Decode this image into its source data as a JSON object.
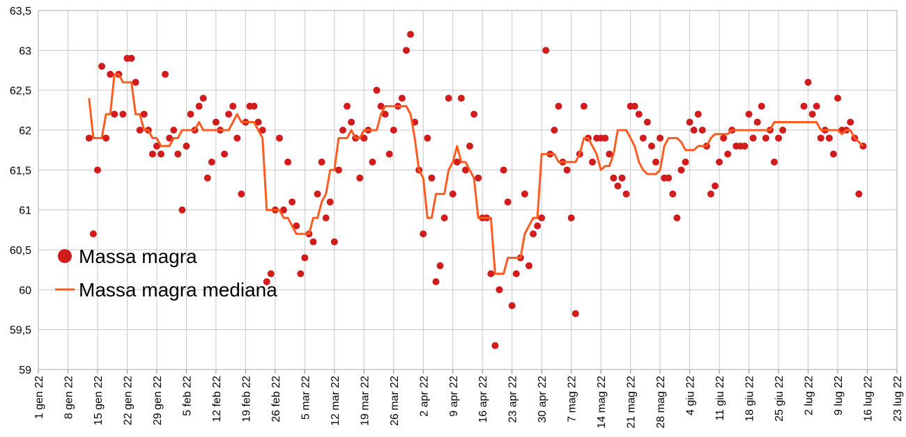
{
  "chart_data": {
    "type": "scatter",
    "x": [
      12,
      13,
      14,
      15,
      16,
      17,
      18,
      19,
      20,
      21,
      22,
      23,
      24,
      25,
      26,
      27,
      28,
      29,
      30,
      31,
      32,
      33,
      34,
      35,
      36,
      37,
      38,
      39,
      40,
      41,
      42,
      43,
      44,
      45,
      46,
      47,
      48,
      49,
      50,
      51,
      52,
      53,
      54,
      55,
      56,
      57,
      58,
      59,
      60,
      61,
      62,
      63,
      64,
      65,
      66,
      67,
      68,
      69,
      70,
      71,
      72,
      73,
      74,
      75,
      76,
      77,
      78,
      79,
      80,
      81,
      82,
      83,
      84,
      85,
      86,
      87,
      88,
      89,
      90,
      91,
      92,
      93,
      94,
      95,
      96,
      97,
      98,
      99,
      100,
      101,
      102,
      103,
      104,
      105,
      106,
      107,
      108,
      109,
      110,
      111,
      112,
      113,
      114,
      115,
      116,
      117,
      118,
      119,
      120,
      121,
      122,
      123,
      124,
      125,
      126,
      127,
      128,
      129,
      130,
      131,
      132,
      133,
      134,
      135,
      136,
      137,
      138,
      139,
      140,
      141,
      142,
      143,
      144,
      145,
      146,
      147,
      148,
      149,
      150,
      151,
      152,
      153,
      154,
      155,
      156,
      157,
      158,
      159,
      160,
      161,
      162,
      163,
      164,
      165,
      166,
      167,
      168,
      169,
      170,
      171,
      172,
      173,
      174,
      175,
      176,
      177,
      178,
      179,
      180,
      181,
      182,
      183,
      184,
      185,
      186,
      187,
      188,
      189,
      190,
      191,
      192,
      193,
      194,
      195
    ],
    "series": [
      {
        "name": "Massa magra",
        "type": "scatter",
        "color": "#d01c1c",
        "values": [
          61.9,
          60.7,
          61.5,
          62.8,
          61.9,
          62.7,
          62.2,
          62.7,
          62.2,
          62.9,
          62.9,
          62.6,
          62.0,
          62.2,
          62.0,
          61.7,
          61.8,
          61.7,
          62.7,
          61.9,
          62.0,
          61.7,
          61.0,
          61.8,
          62.2,
          62.0,
          62.3,
          62.4,
          61.4,
          61.6,
          62.1,
          62.0,
          61.7,
          62.2,
          62.3,
          61.9,
          61.2,
          62.1,
          62.3,
          62.3,
          62.1,
          62.0,
          60.1,
          60.2,
          61.0,
          61.9,
          61.0,
          61.6,
          61.1,
          60.8,
          60.2,
          60.4,
          60.7,
          60.6,
          61.2,
          61.6,
          60.9,
          61.1,
          60.6,
          61.5,
          62.0,
          62.3,
          62.1,
          61.9,
          61.4,
          61.9,
          62.0,
          61.6,
          62.5,
          62.3,
          62.2,
          61.7,
          62.0,
          62.3,
          62.4,
          63.0,
          63.2,
          62.1,
          61.5,
          60.7,
          61.9,
          61.4,
          60.1,
          60.3,
          60.9,
          62.4,
          61.2,
          61.6,
          62.4,
          61.5,
          61.8,
          62.2,
          61.4,
          60.9,
          60.9,
          60.2,
          59.3,
          60.0,
          61.5,
          61.1,
          59.8,
          60.2,
          60.4,
          61.2,
          60.3,
          60.7,
          60.8,
          60.9,
          63.0,
          61.7,
          62.0,
          62.3,
          61.6,
          61.5,
          60.9,
          59.7,
          61.7,
          62.3,
          61.9,
          61.6,
          61.9,
          61.9,
          61.9,
          61.7,
          61.4,
          61.3,
          61.4,
          61.2,
          62.3,
          62.3,
          62.2,
          61.9,
          62.1,
          61.8,
          61.6,
          61.9,
          61.4,
          61.4,
          61.2,
          60.9,
          61.5,
          61.6,
          62.1,
          62.0,
          62.2,
          62.0,
          61.8,
          61.2,
          61.3,
          61.6,
          61.9,
          61.7,
          62.0,
          61.8,
          61.8,
          61.8,
          62.2,
          61.9,
          62.1,
          62.3,
          61.9,
          62.0,
          61.6,
          61.9,
          62.0,
          null,
          null,
          null,
          null,
          62.3,
          62.6,
          62.2,
          62.3,
          61.9,
          62.0,
          61.9,
          61.7,
          62.4,
          62.0,
          62.0,
          62.1,
          61.9,
          61.2,
          61.8
        ]
      },
      {
        "name": "Massa magra mediana",
        "type": "line",
        "color": "#ff5a1f",
        "values": [
          62.4,
          61.9,
          61.9,
          61.9,
          62.2,
          62.2,
          62.7,
          62.7,
          62.6,
          62.6,
          62.6,
          62.2,
          62.2,
          62.0,
          62.0,
          61.9,
          61.9,
          61.8,
          61.8,
          61.8,
          61.9,
          61.9,
          62.0,
          62.0,
          62.0,
          62.0,
          62.1,
          62.0,
          62.0,
          62.0,
          62.0,
          62.0,
          62.0,
          62.0,
          62.1,
          62.2,
          62.1,
          62.1,
          62.1,
          62.1,
          62.0,
          61.9,
          61.0,
          61.0,
          61.0,
          61.0,
          60.9,
          60.9,
          60.8,
          60.7,
          60.7,
          60.7,
          60.7,
          60.9,
          60.9,
          61.1,
          61.2,
          61.5,
          61.5,
          61.9,
          61.9,
          61.9,
          62.0,
          61.9,
          61.9,
          62.0,
          62.0,
          62.0,
          62.0,
          62.2,
          62.3,
          62.3,
          62.3,
          62.3,
          62.3,
          62.3,
          62.2,
          61.9,
          61.5,
          61.4,
          60.9,
          60.9,
          61.2,
          61.2,
          61.2,
          61.5,
          61.6,
          61.8,
          61.6,
          61.6,
          61.5,
          61.4,
          60.9,
          60.9,
          60.9,
          60.9,
          60.2,
          60.2,
          60.2,
          60.4,
          60.4,
          60.4,
          60.4,
          60.7,
          60.8,
          60.9,
          60.9,
          61.7,
          61.7,
          61.7,
          61.7,
          61.6,
          61.6,
          61.6,
          61.6,
          61.6,
          61.7,
          61.9,
          61.9,
          61.8,
          61.7,
          61.5,
          61.55,
          61.55,
          61.7,
          62.0,
          62.0,
          62.0,
          61.9,
          61.8,
          61.6,
          61.5,
          61.45,
          61.45,
          61.45,
          61.5,
          61.8,
          61.9,
          61.9,
          61.9,
          61.85,
          61.75,
          61.75,
          61.75,
          61.8,
          61.8,
          61.8,
          61.9,
          61.95,
          61.95,
          61.95,
          61.95,
          62.0,
          62.0,
          62.0,
          62.0,
          62.0,
          62.0,
          62.0,
          62.0,
          62.0,
          62.0,
          62.1,
          62.1,
          62.1,
          62.1,
          62.1,
          62.1,
          62.1,
          62.1,
          62.1,
          62.1,
          62.1,
          62.0,
          62.0,
          62.0,
          62.0,
          62.0,
          61.95,
          62.0,
          62.0,
          61.9,
          61.85,
          61.8
        ]
      }
    ],
    "xlim": [
      0,
      203
    ],
    "xticks": [
      {
        "value": 0,
        "label": "1 gen 22"
      },
      {
        "value": 7,
        "label": "8 gen 22"
      },
      {
        "value": 14,
        "label": "15 gen 22"
      },
      {
        "value": 21,
        "label": "22 gen 22"
      },
      {
        "value": 28,
        "label": "29 gen 22"
      },
      {
        "value": 35,
        "label": "5 feb 22"
      },
      {
        "value": 42,
        "label": "12 feb 22"
      },
      {
        "value": 49,
        "label": "19 feb 22"
      },
      {
        "value": 56,
        "label": "26 feb 22"
      },
      {
        "value": 63,
        "label": "5 mar 22"
      },
      {
        "value": 70,
        "label": "12 mar 22"
      },
      {
        "value": 77,
        "label": "19 mar 22"
      },
      {
        "value": 84,
        "label": "26 mar 22"
      },
      {
        "value": 91,
        "label": "2 apr 22"
      },
      {
        "value": 98,
        "label": "9 apr 22"
      },
      {
        "value": 105,
        "label": "16 apr 22"
      },
      {
        "value": 112,
        "label": "23 apr 22"
      },
      {
        "value": 119,
        "label": "30 apr 22"
      },
      {
        "value": 126,
        "label": "7 mag 22"
      },
      {
        "value": 133,
        "label": "14 mag 22"
      },
      {
        "value": 140,
        "label": "21 mag 22"
      },
      {
        "value": 147,
        "label": "28 mag 22"
      },
      {
        "value": 154,
        "label": "4 giu 22"
      },
      {
        "value": 161,
        "label": "11 giu 22"
      },
      {
        "value": 168,
        "label": "18 giu 22"
      },
      {
        "value": 175,
        "label": "25 giu 22"
      },
      {
        "value": 182,
        "label": "2 lug 22"
      },
      {
        "value": 189,
        "label": "9 lug 22"
      },
      {
        "value": 196,
        "label": "16 lug 22"
      },
      {
        "value": 203,
        "label": "23 lug 22"
      }
    ],
    "ylim": [
      59,
      63.5
    ],
    "yticks": [
      59,
      {
        "value": 59.5,
        "label": "59,5"
      },
      60,
      {
        "value": 60.5,
        "label": "60,5"
      },
      61,
      {
        "value": 61.5,
        "label": "61,5"
      },
      62,
      {
        "value": 62.5,
        "label": "62,5"
      },
      63,
      {
        "value": 63.5,
        "label": "63,5"
      }
    ],
    "grid": true,
    "legend": "lower left"
  }
}
